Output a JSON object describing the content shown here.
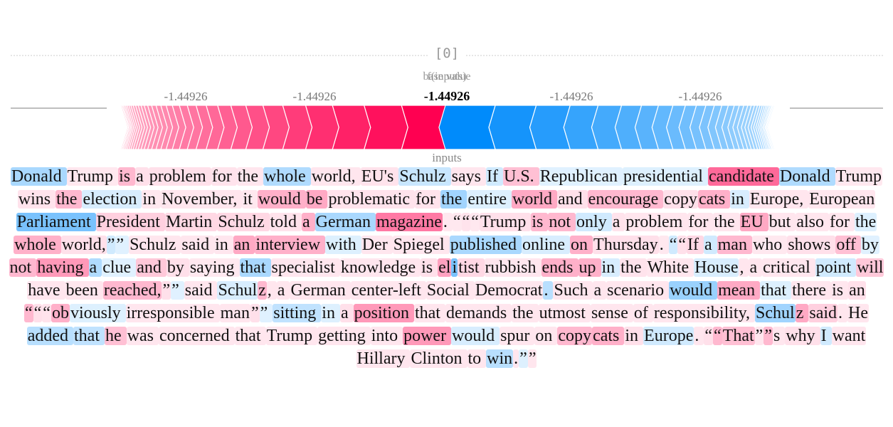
{
  "chart_data": {
    "type": "force",
    "output_name": "[0]",
    "labels": {
      "base": "base value",
      "fx": "f(inputs)",
      "upper": "inputs"
    },
    "base_value": -1.44926,
    "output_value": -1.44926,
    "ticks": [
      "-1.44926",
      "-1.44926",
      "-1.44926",
      "-1.44926",
      "-1.44926"
    ],
    "center_label": "-1.44926",
    "positive_color": "#ff0051",
    "negative_color": "#008bfb",
    "positive_weights": [
      1.0,
      0.85,
      0.72,
      0.61,
      0.52,
      0.45,
      0.39,
      0.34,
      0.3,
      0.26,
      0.23,
      0.2,
      0.18,
      0.16,
      0.14,
      0.12,
      0.11,
      0.1,
      0.09,
      0.08,
      0.07,
      0.065,
      0.06,
      0.055,
      0.05,
      0.045,
      0.04,
      0.035,
      0.03,
      0.03,
      0.025,
      0.025,
      0.02,
      0.02,
      0.02,
      0.015,
      0.015,
      0.015,
      0.01,
      0.01
    ],
    "negative_weights": [
      1.0,
      0.82,
      0.68,
      0.56,
      0.47,
      0.4,
      0.34,
      0.29,
      0.25,
      0.22,
      0.19,
      0.17,
      0.15,
      0.13,
      0.12,
      0.1,
      0.09,
      0.08,
      0.07,
      0.065,
      0.06,
      0.05,
      0.045,
      0.04,
      0.035,
      0.03,
      0.03,
      0.025,
      0.025,
      0.02,
      0.02,
      0.02,
      0.015,
      0.015,
      0.01,
      0.01
    ]
  },
  "tokens": [
    [
      "Donald ",
      -0.45
    ],
    [
      "Trump ",
      0.05
    ],
    [
      "is ",
      0.35
    ],
    [
      "a ",
      0.1
    ],
    [
      "problem ",
      0.1
    ],
    [
      "for ",
      0.08
    ],
    [
      "the ",
      0.06
    ],
    [
      "whole ",
      -0.4
    ],
    [
      "world, ",
      0.06
    ],
    [
      "EU's ",
      0.08
    ],
    [
      "Schulz ",
      -0.25
    ],
    [
      "says ",
      0.06
    ],
    [
      "If ",
      -0.2
    ],
    [
      "U.S. ",
      0.3
    ],
    [
      "Republican ",
      -0.1
    ],
    [
      "presidential ",
      -0.12
    ],
    [
      "candidate ",
      0.85
    ],
    [
      "Donald ",
      -0.4
    ],
    [
      "Trump ",
      0.05
    ],
    [
      "wins ",
      0.08
    ],
    [
      "the ",
      0.35
    ],
    [
      "election ",
      -0.15
    ],
    [
      "in ",
      0.05
    ],
    [
      "November, ",
      0.06
    ],
    [
      "it ",
      0.05
    ],
    [
      "would ",
      0.4
    ],
    [
      "be ",
      0.45
    ],
    [
      "problematic ",
      0.08
    ],
    [
      "for ",
      0.08
    ],
    [
      "the ",
      -0.5
    ],
    [
      "entire ",
      -0.12
    ],
    [
      "world ",
      0.45
    ],
    [
      "and ",
      0.1
    ],
    [
      "encourage ",
      0.35
    ],
    [
      "copy",
      0.1
    ],
    [
      "cats ",
      0.4
    ],
    [
      "in ",
      -0.15
    ],
    [
      "Europe, ",
      0.06
    ],
    [
      "European ",
      0.06
    ],
    [
      "Parliament ",
      -0.75
    ],
    [
      "President ",
      0.2
    ],
    [
      "Martin ",
      0.15
    ],
    [
      "Schulz ",
      0.15
    ],
    [
      "told ",
      0.08
    ],
    [
      "a ",
      0.4
    ],
    [
      "German ",
      -0.45
    ],
    [
      "magazine",
      0.75
    ],
    [
      ". ",
      0.05
    ],
    [
      "“",
      0.05
    ],
    [
      "“",
      0.08
    ],
    [
      "“",
      0.05
    ],
    [
      "Trump ",
      0.1
    ],
    [
      "is ",
      0.35
    ],
    [
      "not ",
      0.35
    ],
    [
      "only ",
      -0.2
    ],
    [
      "a ",
      0.08
    ],
    [
      "problem ",
      0.06
    ],
    [
      "for ",
      0.06
    ],
    [
      "the ",
      0.06
    ],
    [
      "EU ",
      0.45
    ],
    [
      "but ",
      0.06
    ],
    [
      "also ",
      0.06
    ],
    [
      "for ",
      0.06
    ],
    [
      "the ",
      -0.12
    ],
    [
      "whole ",
      0.4
    ],
    [
      "world,",
      0.1
    ],
    [
      "”",
      -0.2
    ],
    [
      "” ",
      -0.1
    ],
    [
      "Schulz ",
      0.06
    ],
    [
      "said ",
      0.06
    ],
    [
      "in ",
      0.06
    ],
    [
      "an ",
      0.45
    ],
    [
      "interview ",
      0.4
    ],
    [
      "with ",
      -0.12
    ],
    [
      "Der ",
      0.06
    ],
    [
      "Spiegel ",
      0.06
    ],
    [
      "published ",
      -0.45
    ],
    [
      "online ",
      -0.15
    ],
    [
      "on ",
      0.4
    ],
    [
      "Thursday",
      0.1
    ],
    [
      ". ",
      0.05
    ],
    [
      "“",
      -0.2
    ],
    [
      "“",
      0.1
    ],
    [
      "If ",
      0.15
    ],
    [
      "a ",
      -0.2
    ],
    [
      "man ",
      0.35
    ],
    [
      "who ",
      0.05
    ],
    [
      "shows ",
      0.1
    ],
    [
      "off ",
      0.3
    ],
    [
      "by ",
      -0.1
    ],
    [
      "not ",
      0.35
    ],
    [
      "having ",
      0.55
    ],
    [
      "a ",
      -0.4
    ],
    [
      "clue ",
      -0.1
    ],
    [
      "and ",
      0.25
    ],
    [
      "by ",
      0.1
    ],
    [
      "saying ",
      0.05
    ],
    [
      "that ",
      -0.45
    ],
    [
      "specialist ",
      0.06
    ],
    [
      "knowledge ",
      0.06
    ],
    [
      "is ",
      0.1
    ],
    [
      "el",
      0.5
    ],
    [
      "i",
      -0.75
    ],
    [
      "tist ",
      0.15
    ],
    [
      "rubbish ",
      0.06
    ],
    [
      "ends ",
      0.4
    ],
    [
      "up ",
      0.4
    ],
    [
      "in ",
      -0.15
    ],
    [
      "the ",
      0.08
    ],
    [
      "White ",
      0.06
    ],
    [
      "House",
      -0.15
    ],
    [
      ", ",
      0.06
    ],
    [
      "a ",
      0.06
    ],
    [
      "critical ",
      0.06
    ],
    [
      "point ",
      -0.2
    ],
    [
      "will ",
      0.25
    ],
    [
      "have ",
      0.06
    ],
    [
      "been ",
      0.06
    ],
    [
      "reached,",
      0.35
    ],
    [
      "”",
      0.1
    ],
    [
      "” ",
      -0.1
    ],
    [
      "said ",
      0.06
    ],
    [
      "Schul",
      -0.15
    ],
    [
      "z",
      0.35
    ],
    [
      ", ",
      0.06
    ],
    [
      "a ",
      0.06
    ],
    [
      "German ",
      0.06
    ],
    [
      "center-left ",
      0.06
    ],
    [
      "Social ",
      0.06
    ],
    [
      "Democrat",
      0.06
    ],
    [
      ". ",
      -0.35
    ],
    [
      "Such ",
      0.06
    ],
    [
      "a ",
      0.06
    ],
    [
      "scenario ",
      0.06
    ],
    [
      "would ",
      -0.55
    ],
    [
      "mean ",
      0.45
    ],
    [
      "that ",
      -0.12
    ],
    [
      "there ",
      0.06
    ],
    [
      "is ",
      0.06
    ],
    [
      "an ",
      0.1
    ],
    [
      "“",
      0.35
    ],
    [
      "“",
      0.1
    ],
    [
      "“",
      0.08
    ],
    [
      "ob",
      0.4
    ],
    [
      "viously ",
      -0.12
    ],
    [
      "irresponsible ",
      0.06
    ],
    [
      "man",
      0.06
    ],
    [
      "”",
      0.1
    ],
    [
      "” ",
      -0.1
    ],
    [
      "sitting ",
      -0.3
    ],
    [
      "in ",
      -0.12
    ],
    [
      "a ",
      0.1
    ],
    [
      "position ",
      0.55
    ],
    [
      "that ",
      0.06
    ],
    [
      "demands ",
      0.06
    ],
    [
      "the ",
      0.06
    ],
    [
      "utmost ",
      0.06
    ],
    [
      "sense ",
      0.06
    ],
    [
      "of ",
      0.06
    ],
    [
      "responsibility, ",
      0.06
    ],
    [
      "Schul",
      -0.5
    ],
    [
      "z ",
      0.45
    ],
    [
      "said",
      0.2
    ],
    [
      ". ",
      0.06
    ],
    [
      "He ",
      0.06
    ],
    [
      "added ",
      -0.35
    ],
    [
      "that ",
      -0.3
    ],
    [
      "he ",
      0.3
    ],
    [
      "was ",
      0.06
    ],
    [
      "concerned ",
      0.06
    ],
    [
      "that ",
      0.06
    ],
    [
      "Trump ",
      0.06
    ],
    [
      "getting ",
      0.06
    ],
    [
      "into ",
      0.06
    ],
    [
      "power ",
      0.55
    ],
    [
      "would ",
      -0.15
    ],
    [
      "spur ",
      0.06
    ],
    [
      "on ",
      0.06
    ],
    [
      "copy",
      0.35
    ],
    [
      "cats ",
      0.4
    ],
    [
      "in ",
      0.1
    ],
    [
      "Europe",
      -0.2
    ],
    [
      ". ",
      0.06
    ],
    [
      "“",
      0.1
    ],
    [
      "“",
      0.35
    ],
    [
      "That",
      0.3
    ],
    [
      "”",
      0.06
    ],
    [
      "”",
      0.35
    ],
    [
      "s ",
      0.06
    ],
    [
      "why ",
      0.1
    ],
    [
      "I ",
      -0.2
    ],
    [
      "want ",
      0.06
    ],
    [
      "Hillary ",
      0.06
    ],
    [
      "Clinton ",
      0.06
    ],
    [
      "to ",
      0.06
    ],
    [
      "win",
      -0.35
    ],
    [
      ".",
      0.06
    ],
    [
      "”",
      -0.12
    ],
    [
      "”",
      0.06
    ]
  ]
}
